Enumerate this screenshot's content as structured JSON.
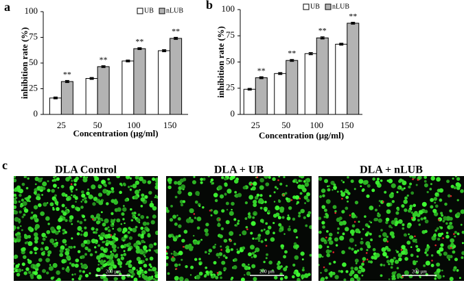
{
  "chart_data": [
    {
      "type": "bar",
      "label": "a",
      "categories": [
        "25",
        "50",
        "100",
        "150"
      ],
      "series": [
        {
          "name": "UB",
          "color": "#ffffff",
          "values": [
            16,
            35,
            52,
            62
          ],
          "errors": [
            0.8,
            0.8,
            0.8,
            0.9
          ]
        },
        {
          "name": "nLUB",
          "color": "#b3b3b3",
          "values": [
            32,
            46.5,
            64,
            74
          ],
          "errors": [
            0.9,
            0.8,
            0.8,
            0.9
          ]
        }
      ],
      "significance": [
        "**",
        "**",
        "**",
        "**"
      ],
      "xlabel": "Concentration (µg/ml)",
      "ylabel": "inhibition rate (%)",
      "ylim": [
        0,
        100
      ],
      "yticks": [
        0,
        25,
        50,
        75,
        100
      ]
    },
    {
      "type": "bar",
      "label": "b",
      "categories": [
        "25",
        "50",
        "100",
        "150"
      ],
      "series": [
        {
          "name": "UB",
          "color": "#ffffff",
          "values": [
            24,
            39,
            58,
            67
          ],
          "errors": [
            0.7,
            0.8,
            0.9,
            0.8
          ]
        },
        {
          "name": "nLUB",
          "color": "#b3b3b3",
          "values": [
            35,
            51.5,
            73,
            87
          ],
          "errors": [
            0.8,
            0.8,
            0.9,
            0.8
          ]
        }
      ],
      "significance": [
        "**",
        "**",
        "**",
        "**"
      ],
      "xlabel": "Concentration (µg/ml)",
      "ylabel": "inhibition rate (%)",
      "ylim": [
        0,
        100
      ],
      "yticks": [
        0,
        25,
        50,
        75,
        100
      ]
    }
  ],
  "images_panel": {
    "label": "c",
    "images": [
      {
        "title": "DLA Control",
        "scale_bar": "200 µm"
      },
      {
        "title": "DLA + UB",
        "scale_bar": "200 µm"
      },
      {
        "title": "DLA + nLUB",
        "scale_bar": "200 µm"
      }
    ]
  }
}
